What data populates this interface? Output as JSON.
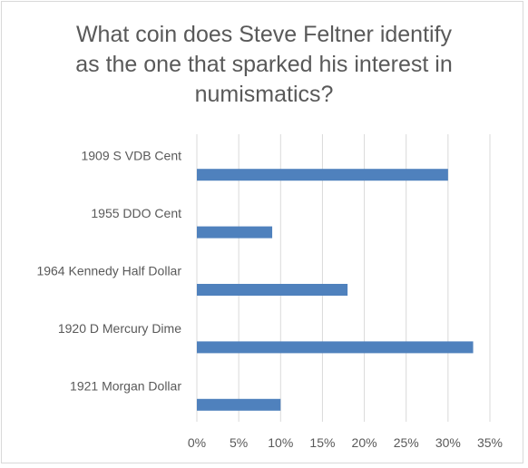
{
  "chart_data": {
    "type": "bar",
    "orientation": "horizontal",
    "title_lines": [
      "What coin does Steve Feltner identify",
      "as the one that sparked his interest in",
      "numismatics?"
    ],
    "categories": [
      "1909 S VDB Cent",
      "1955 DDO Cent",
      "1964 Kennedy Half Dollar",
      "1920 D Mercury Dime",
      "1921 Morgan Dollar"
    ],
    "values": [
      0.3,
      0.09,
      0.18,
      0.33,
      0.1
    ],
    "xlim": [
      0,
      0.35
    ],
    "xticks": [
      0,
      0.05,
      0.1,
      0.15,
      0.2,
      0.25,
      0.3,
      0.35
    ],
    "xtick_labels": [
      "0%",
      "5%",
      "10%",
      "15%",
      "20%",
      "25%",
      "30%",
      "35%"
    ],
    "bar_color": "#4f81bd",
    "grid": true,
    "legend": "none"
  }
}
